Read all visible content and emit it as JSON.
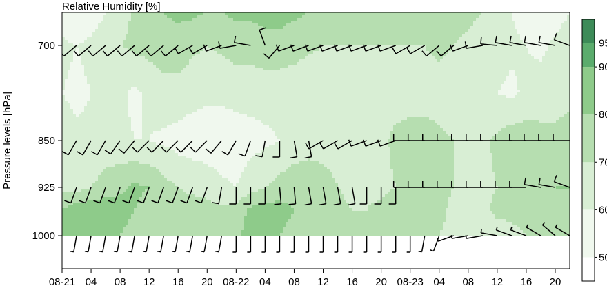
{
  "chart_data": {
    "type": "heatmap",
    "title": "Relative Humidity [%]",
    "ylabel": "Pressure levels [hPa]",
    "xlabel": "",
    "x_ticks": [
      "08-21",
      "04",
      "08",
      "12",
      "16",
      "20",
      "08-22",
      "04",
      "08",
      "12",
      "16",
      "20",
      "08-23",
      "04",
      "08",
      "12",
      "16",
      "20"
    ],
    "x_tick_hours": [
      0,
      4,
      8,
      12,
      16,
      20,
      24,
      28,
      32,
      36,
      40,
      44,
      48,
      52,
      56,
      60,
      64,
      68
    ],
    "xlim_hours": [
      0,
      70
    ],
    "y_levels_hpa": [
      700,
      850,
      925,
      1000
    ],
    "y_tick_labels": [
      "700",
      "850",
      "925",
      "1000"
    ],
    "colorbar": {
      "ticks": [
        50,
        60,
        70,
        80,
        90,
        95
      ],
      "tick_labels": [
        "50",
        "60",
        "70",
        "80",
        "90",
        "95"
      ],
      "levels": [
        45,
        50,
        60,
        70,
        80,
        90,
        95,
        100
      ],
      "colors": [
        "#ffffff",
        "#f0f8ee",
        "#d8eed4",
        "#b6deb0",
        "#8ecb8a",
        "#5bac6d",
        "#3d8b58"
      ]
    },
    "grid": false,
    "humidity_grid": {
      "hours": [
        0,
        2,
        4,
        6,
        8,
        10,
        12,
        14,
        16,
        18,
        20,
        22,
        24,
        26,
        28,
        30,
        32,
        34,
        36,
        38,
        40,
        42,
        44,
        46,
        48,
        50,
        52,
        54,
        56,
        58,
        60,
        62,
        64,
        66,
        68,
        70
      ],
      "levels_hpa": [
        650,
        700,
        775,
        850,
        925,
        960,
        1000
      ],
      "rh": [
        [
          55,
          50,
          55,
          60,
          65,
          72,
          78,
          80,
          82,
          82,
          80,
          80,
          82,
          82,
          84,
          84,
          82,
          80,
          78,
          76,
          76,
          74,
          74,
          72,
          72,
          72,
          74,
          74,
          72,
          70,
          66,
          60,
          55,
          52,
          55,
          60
        ],
        [
          62,
          60,
          62,
          65,
          70,
          72,
          74,
          76,
          76,
          72,
          70,
          72,
          74,
          74,
          76,
          76,
          74,
          72,
          70,
          70,
          70,
          70,
          70,
          70,
          70,
          70,
          72,
          70,
          68,
          66,
          64,
          62,
          60,
          58,
          62,
          66
        ],
        [
          60,
          58,
          60,
          62,
          62,
          58,
          62,
          66,
          66,
          64,
          62,
          62,
          64,
          64,
          64,
          64,
          64,
          62,
          64,
          66,
          66,
          66,
          66,
          66,
          66,
          66,
          66,
          64,
          64,
          63,
          60,
          58,
          62,
          64,
          64,
          66
        ],
        [
          64,
          62,
          62,
          64,
          62,
          60,
          60,
          58,
          56,
          54,
          54,
          54,
          54,
          56,
          58,
          60,
          64,
          66,
          66,
          66,
          66,
          66,
          68,
          72,
          74,
          74,
          72,
          70,
          68,
          68,
          72,
          76,
          76,
          74,
          74,
          76
        ],
        [
          68,
          66,
          70,
          74,
          78,
          82,
          80,
          74,
          70,
          68,
          66,
          62,
          60,
          66,
          70,
          74,
          76,
          76,
          74,
          70,
          68,
          68,
          68,
          70,
          72,
          72,
          72,
          70,
          68,
          68,
          70,
          74,
          76,
          78,
          80,
          80
        ],
        [
          80,
          86,
          88,
          88,
          84,
          80,
          76,
          74,
          74,
          74,
          74,
          72,
          74,
          82,
          86,
          84,
          80,
          76,
          74,
          72,
          70,
          70,
          72,
          76,
          76,
          74,
          72,
          68,
          68,
          68,
          72,
          72,
          72,
          74,
          78,
          80
        ],
        [
          80,
          84,
          86,
          84,
          80,
          76,
          74,
          72,
          72,
          72,
          74,
          74,
          78,
          84,
          84,
          80,
          76,
          74,
          72,
          70,
          70,
          72,
          74,
          76,
          76,
          74,
          70,
          68,
          66,
          64,
          66,
          68,
          70,
          72,
          72,
          74
        ]
      ]
    },
    "wind_barbs": {
      "hours": [
        0,
        2,
        4,
        6,
        8,
        10,
        12,
        14,
        16,
        18,
        20,
        22,
        24,
        26,
        28,
        30,
        32,
        34,
        36,
        38,
        40,
        42,
        44,
        46,
        48,
        50,
        52,
        54,
        56,
        58,
        60,
        62,
        64,
        66,
        68,
        70
      ],
      "levels_hpa": [
        700,
        850,
        925,
        1000
      ],
      "directions_deg": [
        [
          230,
          230,
          230,
          230,
          230,
          230,
          230,
          230,
          230,
          240,
          240,
          250,
          260,
          280,
          340,
          220,
          250,
          250,
          250,
          250,
          250,
          250,
          250,
          250,
          240,
          240,
          230,
          230,
          250,
          260,
          275,
          280,
          280,
          280,
          280,
          290
        ],
        [
          210,
          210,
          210,
          210,
          215,
          220,
          225,
          225,
          225,
          225,
          225,
          220,
          210,
          200,
          190,
          180,
          170,
          170,
          240,
          240,
          240,
          250,
          250,
          250,
          270,
          270,
          270,
          270,
          270,
          270,
          270,
          270,
          270,
          270,
          270,
          270
        ],
        [
          200,
          200,
          200,
          200,
          200,
          200,
          200,
          200,
          200,
          200,
          200,
          190,
          180,
          180,
          180,
          175,
          175,
          170,
          170,
          170,
          170,
          180,
          180,
          180,
          270,
          270,
          270,
          270,
          270,
          270,
          270,
          270,
          270,
          280,
          280,
          290
        ],
        [
          190,
          190,
          190,
          190,
          190,
          190,
          190,
          190,
          190,
          190,
          190,
          190,
          180,
          180,
          180,
          180,
          180,
          180,
          180,
          180,
          180,
          180,
          180,
          180,
          180,
          190,
          200,
          250,
          260,
          260,
          280,
          290,
          290,
          300,
          310,
          300
        ]
      ],
      "speeds_kt": [
        [
          10,
          10,
          10,
          10,
          10,
          10,
          10,
          10,
          10,
          10,
          10,
          10,
          10,
          10,
          10,
          10,
          10,
          10,
          10,
          10,
          10,
          10,
          10,
          10,
          10,
          10,
          10,
          10,
          10,
          10,
          10,
          10,
          10,
          10,
          10,
          10
        ],
        [
          10,
          10,
          10,
          10,
          10,
          10,
          10,
          10,
          10,
          10,
          10,
          10,
          10,
          10,
          10,
          10,
          10,
          10,
          10,
          10,
          10,
          10,
          10,
          10,
          10,
          10,
          10,
          10,
          10,
          10,
          10,
          10,
          10,
          10,
          10,
          10
        ],
        [
          10,
          10,
          10,
          10,
          10,
          10,
          10,
          10,
          10,
          10,
          10,
          10,
          10,
          10,
          10,
          10,
          10,
          10,
          10,
          10,
          10,
          10,
          10,
          10,
          10,
          10,
          10,
          10,
          10,
          10,
          10,
          10,
          10,
          10,
          10,
          10
        ],
        [
          5,
          5,
          5,
          5,
          5,
          5,
          5,
          5,
          5,
          5,
          5,
          5,
          5,
          5,
          5,
          5,
          5,
          5,
          5,
          5,
          5,
          5,
          5,
          5,
          5,
          5,
          5,
          5,
          5,
          5,
          5,
          5,
          5,
          5,
          5,
          5
        ]
      ]
    }
  }
}
